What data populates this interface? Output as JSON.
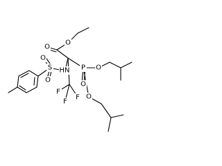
{
  "atoms": [
    "O",
    "O",
    "HN",
    "S",
    "O",
    "O",
    "P",
    "O",
    "O",
    "O",
    "F",
    "F",
    "F"
  ]
}
